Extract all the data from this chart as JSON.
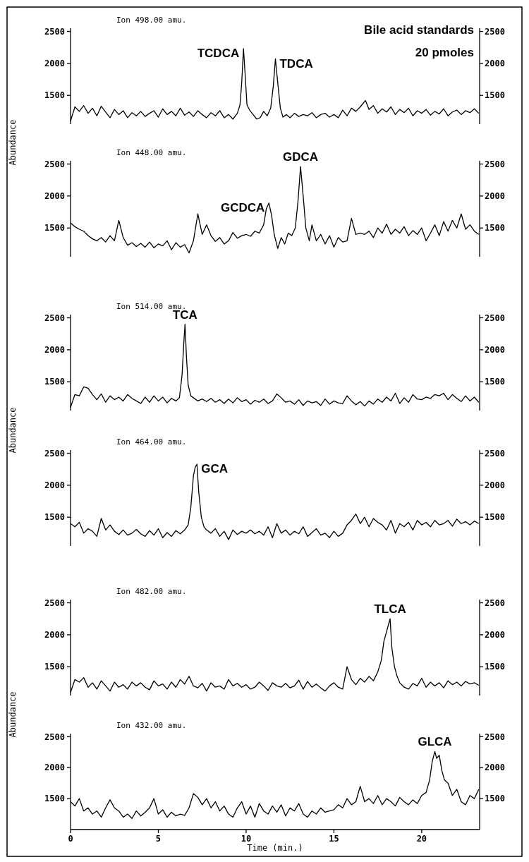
{
  "chart_data": [
    {
      "type": "line",
      "title": "Ion 498.00 amu.",
      "ylabel": "Abundance",
      "xlim": [
        0,
        23.3
      ],
      "xticks": [
        0,
        5,
        10,
        15,
        20
      ],
      "ylim": [
        1050,
        2550
      ],
      "yticks": [
        1500,
        2000,
        2500
      ],
      "y2lim": [
        1050,
        2550
      ],
      "y2ticks": [
        1500,
        2000,
        2500
      ],
      "tick_labels": "y",
      "annotations": [
        "Bile acid standards",
        "20 pmoles",
        {
          "text": "TCDCA",
          "x": 9.85,
          "y": 2230
        },
        {
          "text": "TDCA",
          "x": 11.67,
          "y": 2070
        }
      ],
      "series": [
        {
          "color": "#000000",
          "x": [
            0,
            0.25,
            0.5,
            0.75,
            1,
            1.25,
            1.5,
            1.75,
            2,
            2.25,
            2.5,
            2.75,
            3,
            3.25,
            3.5,
            3.75,
            4,
            4.25,
            4.5,
            4.75,
            5,
            5.25,
            5.5,
            5.75,
            6,
            6.25,
            6.5,
            6.75,
            7,
            7.25,
            7.5,
            7.75,
            8,
            8.25,
            8.5,
            8.75,
            9,
            9.25,
            9.5,
            9.65,
            9.75,
            9.85,
            9.95,
            10.05,
            10.2,
            10.4,
            10.6,
            10.8,
            11,
            11.2,
            11.4,
            11.55,
            11.67,
            11.8,
            11.95,
            12.1,
            12.3,
            12.5,
            12.75,
            13,
            13.25,
            13.5,
            13.75,
            14,
            14.25,
            14.5,
            14.75,
            15,
            15.25,
            15.5,
            15.75,
            16,
            16.25,
            16.5,
            16.8,
            17,
            17.25,
            17.5,
            17.75,
            18,
            18.25,
            18.5,
            18.75,
            19,
            19.25,
            19.5,
            19.75,
            20,
            20.25,
            20.5,
            20.75,
            21,
            21.25,
            21.5,
            21.75,
            22,
            22.25,
            22.5,
            22.75,
            23,
            23.25
          ],
          "values": [
            1100,
            1320,
            1250,
            1340,
            1220,
            1300,
            1180,
            1330,
            1240,
            1150,
            1280,
            1200,
            1260,
            1150,
            1230,
            1180,
            1250,
            1170,
            1220,
            1260,
            1160,
            1290,
            1200,
            1250,
            1180,
            1300,
            1190,
            1240,
            1170,
            1260,
            1200,
            1150,
            1230,
            1180,
            1260,
            1150,
            1200,
            1130,
            1220,
            1350,
            1700,
            2230,
            1800,
            1350,
            1270,
            1200,
            1130,
            1150,
            1250,
            1180,
            1300,
            1650,
            2070,
            1700,
            1300,
            1160,
            1200,
            1150,
            1220,
            1170,
            1200,
            1180,
            1230,
            1150,
            1200,
            1220,
            1160,
            1200,
            1150,
            1270,
            1180,
            1300,
            1250,
            1320,
            1420,
            1280,
            1340,
            1220,
            1290,
            1240,
            1320,
            1200,
            1280,
            1230,
            1300,
            1180,
            1260,
            1220,
            1280,
            1190,
            1250,
            1210,
            1290,
            1180,
            1240,
            1270,
            1200,
            1260,
            1230,
            1290,
            1220
          ]
        }
      ]
    },
    {
      "type": "line",
      "title": "Ion 448.00 amu.",
      "xlim": [
        0,
        23.3
      ],
      "xticks": [
        0,
        5,
        10,
        15,
        20
      ],
      "ylim": [
        1050,
        2550
      ],
      "yticks": [
        1500,
        2000,
        2500
      ],
      "y2lim": [
        1050,
        2550
      ],
      "y2ticks": [
        1500,
        2000,
        2500
      ],
      "tick_labels": "y",
      "annotations": [
        {
          "text": "GCDCA",
          "x": 11.3,
          "y": 1890
        },
        {
          "text": "GDCA",
          "x": 13.1,
          "y": 2460
        }
      ],
      "series": [
        {
          "color": "#000000",
          "x": [
            0,
            0.25,
            0.5,
            0.75,
            1,
            1.25,
            1.5,
            1.75,
            2,
            2.25,
            2.5,
            2.75,
            3,
            3.25,
            3.5,
            3.75,
            4,
            4.25,
            4.5,
            4.75,
            5,
            5.25,
            5.5,
            5.75,
            6,
            6.25,
            6.5,
            6.75,
            7,
            7.25,
            7.5,
            7.75,
            8,
            8.25,
            8.5,
            8.75,
            9,
            9.25,
            9.5,
            9.75,
            10,
            10.25,
            10.5,
            10.75,
            11,
            11.15,
            11.3,
            11.45,
            11.6,
            11.8,
            12,
            12.2,
            12.4,
            12.6,
            12.8,
            12.95,
            13.1,
            13.25,
            13.4,
            13.6,
            13.75,
            14,
            14.25,
            14.5,
            14.75,
            15,
            15.25,
            15.5,
            15.75,
            16,
            16.25,
            16.5,
            16.75,
            17,
            17.25,
            17.5,
            17.75,
            18,
            18.25,
            18.5,
            18.75,
            19,
            19.25,
            19.5,
            19.75,
            20,
            20.25,
            20.5,
            20.75,
            21,
            21.25,
            21.5,
            21.75,
            22,
            22.25,
            22.5,
            22.75,
            23,
            23.25
          ],
          "values": [
            1580,
            1520,
            1480,
            1450,
            1380,
            1330,
            1300,
            1350,
            1280,
            1380,
            1300,
            1620,
            1350,
            1230,
            1270,
            1210,
            1260,
            1200,
            1280,
            1190,
            1250,
            1220,
            1300,
            1160,
            1270,
            1200,
            1240,
            1110,
            1300,
            1720,
            1400,
            1550,
            1380,
            1290,
            1350,
            1250,
            1300,
            1430,
            1340,
            1380,
            1400,
            1370,
            1450,
            1420,
            1550,
            1800,
            1890,
            1700,
            1400,
            1180,
            1350,
            1250,
            1420,
            1380,
            1500,
            1900,
            2460,
            2000,
            1500,
            1300,
            1550,
            1300,
            1400,
            1250,
            1380,
            1200,
            1350,
            1280,
            1300,
            1650,
            1400,
            1420,
            1400,
            1450,
            1350,
            1500,
            1420,
            1560,
            1400,
            1480,
            1420,
            1520,
            1380,
            1460,
            1400,
            1500,
            1300,
            1420,
            1550,
            1380,
            1600,
            1450,
            1620,
            1500,
            1720,
            1480,
            1550,
            1450,
            1400
          ]
        }
      ]
    },
    {
      "type": "line",
      "title": "Ion 514.00 amu.",
      "ylabel": "Abundance",
      "xlim": [
        0,
        23.3
      ],
      "xticks": [
        0,
        5,
        10,
        15,
        20
      ],
      "ylim": [
        1050,
        2550
      ],
      "yticks": [
        1500,
        2000,
        2500
      ],
      "y2lim": [
        1050,
        2550
      ],
      "y2ticks": [
        1500,
        2000,
        2500
      ],
      "tick_labels": "y",
      "annotations": [
        {
          "text": "TCA",
          "x": 6.52,
          "y": 2400
        }
      ],
      "series": [
        {
          "color": "#000000",
          "x": [
            0,
            0.25,
            0.5,
            0.75,
            1,
            1.25,
            1.5,
            1.75,
            2,
            2.25,
            2.5,
            2.75,
            3,
            3.25,
            3.5,
            3.75,
            4,
            4.25,
            4.5,
            4.75,
            5,
            5.25,
            5.5,
            5.75,
            6,
            6.2,
            6.35,
            6.45,
            6.52,
            6.6,
            6.7,
            6.85,
            7,
            7.25,
            7.5,
            7.75,
            8,
            8.25,
            8.5,
            8.75,
            9,
            9.25,
            9.5,
            9.75,
            10,
            10.25,
            10.5,
            10.75,
            11,
            11.25,
            11.5,
            11.75,
            12,
            12.25,
            12.5,
            12.75,
            13,
            13.25,
            13.5,
            13.75,
            14,
            14.25,
            14.5,
            14.75,
            15,
            15.25,
            15.5,
            15.75,
            16,
            16.25,
            16.5,
            16.75,
            17,
            17.25,
            17.5,
            17.75,
            18,
            18.25,
            18.5,
            18.75,
            19,
            19.25,
            19.5,
            19.75,
            20,
            20.25,
            20.5,
            20.75,
            21,
            21.25,
            21.5,
            21.75,
            22,
            22.25,
            22.5,
            22.75,
            23,
            23.25
          ],
          "values": [
            1100,
            1300,
            1280,
            1420,
            1400,
            1300,
            1220,
            1310,
            1180,
            1280,
            1220,
            1260,
            1200,
            1300,
            1240,
            1200,
            1160,
            1260,
            1180,
            1280,
            1200,
            1260,
            1170,
            1240,
            1200,
            1250,
            1600,
            2100,
            2400,
            1900,
            1450,
            1280,
            1250,
            1200,
            1230,
            1190,
            1240,
            1180,
            1220,
            1160,
            1230,
            1170,
            1250,
            1190,
            1220,
            1150,
            1210,
            1180,
            1230,
            1160,
            1200,
            1310,
            1250,
            1180,
            1200,
            1150,
            1220,
            1130,
            1200,
            1170,
            1190,
            1130,
            1230,
            1150,
            1200,
            1170,
            1160,
            1280,
            1200,
            1140,
            1190,
            1120,
            1200,
            1150,
            1230,
            1180,
            1260,
            1200,
            1320,
            1160,
            1250,
            1180,
            1300,
            1230,
            1220,
            1260,
            1240,
            1300,
            1280,
            1320,
            1220,
            1300,
            1240,
            1190,
            1280,
            1200,
            1260,
            1180
          ]
        }
      ]
    },
    {
      "type": "line",
      "title": "Ion 464.00 amu.",
      "xlim": [
        0,
        23.3
      ],
      "xticks": [
        0,
        5,
        10,
        15,
        20
      ],
      "ylim": [
        1050,
        2550
      ],
      "yticks": [
        1500,
        2000,
        2500
      ],
      "y2lim": [
        1050,
        2550
      ],
      "y2ticks": [
        1500,
        2000,
        2500
      ],
      "tick_labels": "y",
      "annotations": [
        {
          "text": "GCA",
          "x": 7.2,
          "y": 2330
        }
      ],
      "series": [
        {
          "color": "#000000",
          "x": [
            0,
            0.25,
            0.5,
            0.75,
            1,
            1.25,
            1.5,
            1.75,
            2,
            2.25,
            2.5,
            2.75,
            3,
            3.25,
            3.5,
            3.75,
            4,
            4.25,
            4.5,
            4.75,
            5,
            5.25,
            5.5,
            5.75,
            6,
            6.25,
            6.5,
            6.7,
            6.85,
            7,
            7.1,
            7.2,
            7.3,
            7.45,
            7.6,
            7.75,
            8,
            8.25,
            8.5,
            8.75,
            9,
            9.25,
            9.5,
            9.75,
            10,
            10.25,
            10.5,
            10.75,
            11,
            11.25,
            11.5,
            11.75,
            12,
            12.25,
            12.5,
            12.75,
            13,
            13.25,
            13.5,
            13.75,
            14,
            14.25,
            14.5,
            14.75,
            15,
            15.25,
            15.5,
            15.75,
            16,
            16.25,
            16.5,
            16.75,
            17,
            17.25,
            17.5,
            17.75,
            18,
            18.25,
            18.5,
            18.75,
            19,
            19.25,
            19.5,
            19.75,
            20,
            20.25,
            20.5,
            20.75,
            21,
            21.25,
            21.5,
            21.75,
            22,
            22.25,
            22.5,
            22.75,
            23,
            23.25
          ],
          "values": [
            1400,
            1350,
            1420,
            1250,
            1320,
            1280,
            1200,
            1480,
            1300,
            1380,
            1280,
            1230,
            1300,
            1220,
            1250,
            1310,
            1240,
            1200,
            1290,
            1220,
            1320,
            1180,
            1260,
            1200,
            1290,
            1240,
            1300,
            1380,
            1650,
            2150,
            2280,
            2330,
            1900,
            1500,
            1350,
            1300,
            1250,
            1320,
            1200,
            1280,
            1150,
            1300,
            1230,
            1280,
            1250,
            1300,
            1240,
            1280,
            1220,
            1350,
            1180,
            1400,
            1250,
            1300,
            1220,
            1280,
            1240,
            1350,
            1200,
            1260,
            1320,
            1220,
            1250,
            1180,
            1280,
            1200,
            1250,
            1380,
            1450,
            1550,
            1400,
            1500,
            1350,
            1480,
            1420,
            1380,
            1300,
            1450,
            1250,
            1400,
            1350,
            1420,
            1300,
            1450,
            1380,
            1420,
            1350,
            1450,
            1380,
            1400,
            1450,
            1360,
            1470,
            1400,
            1430,
            1380,
            1440,
            1400
          ]
        }
      ]
    },
    {
      "type": "line",
      "title": "Ion 482.00 amu.",
      "ylabel": "Abundance",
      "xlim": [
        0,
        23.3
      ],
      "xticks": [
        0,
        5,
        10,
        15,
        20
      ],
      "ylim": [
        1050,
        2550
      ],
      "yticks": [
        1500,
        2000,
        2500
      ],
      "y2lim": [
        1050,
        2550
      ],
      "y2ticks": [
        1500,
        2000,
        2500
      ],
      "tick_labels": "y",
      "annotations": [
        {
          "text": "TLCA",
          "x": 18.2,
          "y": 2250
        }
      ],
      "series": [
        {
          "color": "#000000",
          "x": [
            0,
            0.25,
            0.5,
            0.75,
            1,
            1.25,
            1.5,
            1.75,
            2,
            2.25,
            2.5,
            2.75,
            3,
            3.25,
            3.5,
            3.75,
            4,
            4.25,
            4.5,
            4.75,
            5,
            5.25,
            5.5,
            5.75,
            6,
            6.25,
            6.5,
            6.75,
            7,
            7.25,
            7.5,
            7.75,
            8,
            8.25,
            8.5,
            8.75,
            9,
            9.25,
            9.5,
            9.75,
            10,
            10.25,
            10.5,
            10.75,
            11,
            11.25,
            11.5,
            11.75,
            12,
            12.25,
            12.5,
            12.75,
            13,
            13.25,
            13.5,
            13.75,
            14,
            14.25,
            14.5,
            14.75,
            15,
            15.25,
            15.5,
            15.75,
            16,
            16.25,
            16.5,
            16.75,
            17,
            17.25,
            17.5,
            17.7,
            17.85,
            18,
            18.1,
            18.2,
            18.3,
            18.45,
            18.6,
            18.75,
            19,
            19.25,
            19.5,
            19.75,
            20,
            20.25,
            20.5,
            20.75,
            21,
            21.25,
            21.5,
            21.75,
            22,
            22.25,
            22.5,
            22.75,
            23,
            23.25
          ],
          "values": [
            1100,
            1300,
            1260,
            1330,
            1180,
            1250,
            1150,
            1280,
            1200,
            1120,
            1260,
            1180,
            1220,
            1150,
            1260,
            1200,
            1250,
            1180,
            1140,
            1280,
            1200,
            1230,
            1150,
            1260,
            1180,
            1300,
            1230,
            1350,
            1200,
            1170,
            1240,
            1120,
            1250,
            1180,
            1200,
            1150,
            1300,
            1200,
            1240,
            1180,
            1220,
            1150,
            1180,
            1260,
            1200,
            1130,
            1250,
            1200,
            1180,
            1240,
            1170,
            1200,
            1290,
            1150,
            1270,
            1180,
            1230,
            1170,
            1120,
            1200,
            1250,
            1180,
            1150,
            1500,
            1300,
            1220,
            1320,
            1260,
            1350,
            1280,
            1420,
            1600,
            1900,
            2050,
            2150,
            2250,
            1800,
            1500,
            1350,
            1250,
            1180,
            1150,
            1240,
            1200,
            1320,
            1180,
            1260,
            1200,
            1250,
            1170,
            1280,
            1220,
            1260,
            1200,
            1270,
            1230,
            1250,
            1210
          ]
        }
      ]
    },
    {
      "type": "line",
      "title": "Ion 432.00 amu.",
      "xlabel": "Time (min.)",
      "xlim": [
        0,
        23.3
      ],
      "xticks": [
        0,
        5,
        10,
        15,
        20
      ],
      "ylim": [
        1000,
        2550
      ],
      "yticks": [
        1500,
        2000,
        2500
      ],
      "y2lim": [
        1000,
        2550
      ],
      "y2ticks": [
        1500,
        2000,
        2500
      ],
      "annotations": [
        {
          "text": "GLCA",
          "x": 20.75,
          "y": 2260
        }
      ],
      "series": [
        {
          "color": "#000000",
          "x": [
            0,
            0.25,
            0.5,
            0.75,
            1,
            1.25,
            1.5,
            1.75,
            2,
            2.25,
            2.5,
            2.75,
            3,
            3.25,
            3.5,
            3.75,
            4,
            4.25,
            4.5,
            4.75,
            5,
            5.25,
            5.5,
            5.75,
            6,
            6.25,
            6.5,
            6.75,
            7,
            7.25,
            7.5,
            7.75,
            8,
            8.25,
            8.5,
            8.75,
            9,
            9.25,
            9.5,
            9.75,
            10,
            10.25,
            10.5,
            10.75,
            11,
            11.25,
            11.5,
            11.75,
            12,
            12.25,
            12.5,
            12.75,
            13,
            13.25,
            13.5,
            13.75,
            14,
            14.25,
            14.5,
            14.75,
            15,
            15.25,
            15.5,
            15.75,
            16,
            16.25,
            16.5,
            16.75,
            17,
            17.25,
            17.5,
            17.75,
            18,
            18.25,
            18.5,
            18.75,
            19,
            19.25,
            19.5,
            19.75,
            20,
            20.25,
            20.45,
            20.6,
            20.75,
            20.85,
            21,
            21.15,
            21.3,
            21.5,
            21.75,
            22,
            22.25,
            22.5,
            22.75,
            23,
            23.25
          ],
          "values": [
            1450,
            1380,
            1500,
            1300,
            1350,
            1250,
            1300,
            1200,
            1350,
            1480,
            1350,
            1300,
            1200,
            1250,
            1180,
            1300,
            1220,
            1280,
            1350,
            1500,
            1250,
            1320,
            1200,
            1280,
            1220,
            1250,
            1230,
            1350,
            1580,
            1520,
            1400,
            1500,
            1350,
            1450,
            1300,
            1380,
            1250,
            1200,
            1350,
            1450,
            1250,
            1380,
            1200,
            1420,
            1300,
            1250,
            1380,
            1280,
            1400,
            1220,
            1350,
            1300,
            1420,
            1250,
            1200,
            1300,
            1250,
            1350,
            1280,
            1300,
            1320,
            1400,
            1350,
            1500,
            1400,
            1450,
            1700,
            1450,
            1500,
            1420,
            1550,
            1400,
            1500,
            1450,
            1380,
            1520,
            1450,
            1400,
            1480,
            1420,
            1550,
            1600,
            1800,
            2100,
            2260,
            2150,
            2200,
            1950,
            1800,
            1750,
            1550,
            1650,
            1450,
            1400,
            1550,
            1500,
            1650
          ]
        }
      ]
    }
  ]
}
